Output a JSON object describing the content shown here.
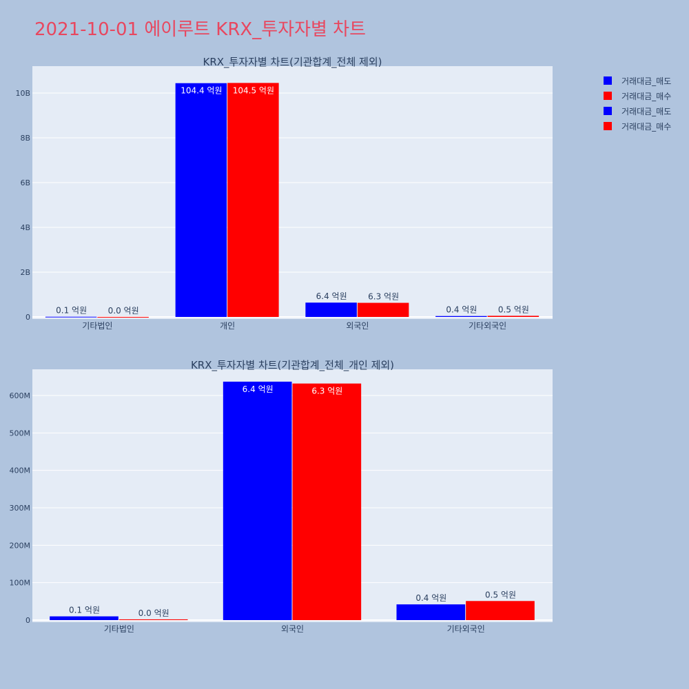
{
  "page_title": "2021-10-01 에이루트 KRX_투자자별 차트",
  "legend": [
    {
      "name": "거래대금_매도",
      "color": "#0000ff"
    },
    {
      "name": "거래대금_매수",
      "color": "#ff0000"
    },
    {
      "name": "거래대금_매도",
      "color": "#0000ff"
    },
    {
      "name": "거래대금_매수",
      "color": "#ff0000"
    }
  ],
  "chart_data": [
    {
      "type": "bar",
      "title": "KRX_투자자별 차트(기관합계_전체 제외)",
      "categories": [
        "기타법인",
        "개인",
        "외국인",
        "기타외국인"
      ],
      "ylim": [
        0,
        11200000000
      ],
      "yticks": [
        0,
        2000000000,
        4000000000,
        6000000000,
        8000000000,
        10000000000
      ],
      "ytick_labels": [
        "0",
        "2B",
        "4B",
        "6B",
        "8B",
        "10B"
      ],
      "grid": true,
      "series": [
        {
          "name": "거래대금_매도",
          "color": "#0000ff",
          "values": [
            10000000,
            10440000000,
            640000000,
            40000000
          ],
          "labels": [
            "0.1 억원",
            "104.4 억원",
            "6.4 억원",
            "0.4 억원"
          ]
        },
        {
          "name": "거래대금_매수",
          "color": "#ff0000",
          "values": [
            2000000,
            10450000000,
            630000000,
            50000000
          ],
          "labels": [
            "0.0 억원",
            "104.5 억원",
            "6.3 억원",
            "0.5 억원"
          ]
        }
      ]
    },
    {
      "type": "bar",
      "title": "KRX_투자자별 차트(기관합계_전체_개인 제외)",
      "categories": [
        "기타법인",
        "외국인",
        "기타외국인"
      ],
      "ylim": [
        0,
        670000000
      ],
      "yticks": [
        0,
        100000000,
        200000000,
        300000000,
        400000000,
        500000000,
        600000000
      ],
      "ytick_labels": [
        "0",
        "100M",
        "200M",
        "300M",
        "400M",
        "500M",
        "600M"
      ],
      "grid": true,
      "series": [
        {
          "name": "거래대금_매도",
          "color": "#0000ff",
          "values": [
            10000000,
            637000000,
            42000000
          ],
          "labels": [
            "0.1 억원",
            "6.4 억원",
            "0.4 억원"
          ]
        },
        {
          "name": "거래대금_매수",
          "color": "#ff0000",
          "values": [
            2000000,
            632000000,
            51000000
          ],
          "labels": [
            "0.0 억원",
            "6.3 억원",
            "0.5 억원"
          ]
        }
      ]
    }
  ]
}
